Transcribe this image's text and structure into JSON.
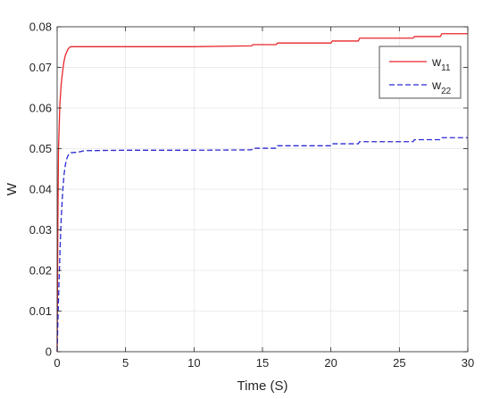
{
  "chart_data": {
    "type": "line",
    "title": "",
    "xlabel": "Time (S)",
    "ylabel": "W",
    "xlim": [
      0,
      30
    ],
    "ylim": [
      0,
      0.08
    ],
    "xticks": [
      "0",
      "5",
      "10",
      "15",
      "20",
      "25",
      "30"
    ],
    "yticks": [
      "0",
      "0.01",
      "0.02",
      "0.03",
      "0.04",
      "0.05",
      "0.06",
      "0.07",
      "0.08"
    ],
    "grid": true,
    "legend_position": "top-right",
    "series": [
      {
        "name": "w",
        "subscript": "11",
        "color": "#e8262a",
        "dash": "solid",
        "x": [
          0,
          0.05,
          0.1,
          0.2,
          0.3,
          0.4,
          0.5,
          0.6,
          0.7,
          0.8,
          0.9,
          1.0,
          1.2,
          2,
          5,
          10,
          14.2,
          14.3,
          16,
          16.1,
          20,
          20.1,
          22,
          22.1,
          26,
          26.1,
          28,
          28.1,
          30
        ],
        "y": [
          0,
          0.03,
          0.05,
          0.061,
          0.066,
          0.069,
          0.0715,
          0.073,
          0.0738,
          0.0745,
          0.0749,
          0.0751,
          0.0751,
          0.0751,
          0.0751,
          0.0751,
          0.0753,
          0.0756,
          0.0756,
          0.076,
          0.076,
          0.0765,
          0.0765,
          0.0772,
          0.0772,
          0.0776,
          0.0776,
          0.0783,
          0.0783
        ]
      },
      {
        "name": "w",
        "subscript": "22",
        "color": "#2a2ad4",
        "dash": "dashed",
        "x": [
          0,
          0.1,
          0.2,
          0.3,
          0.4,
          0.5,
          0.6,
          0.7,
          0.8,
          0.9,
          1.0,
          1.5,
          2,
          5,
          10,
          14.2,
          14.3,
          16,
          16.1,
          20,
          20.1,
          22,
          22.1,
          26,
          26.1,
          28,
          28.1,
          30
        ],
        "y": [
          0,
          0.013,
          0.024,
          0.033,
          0.039,
          0.0435,
          0.046,
          0.0475,
          0.0483,
          0.0488,
          0.049,
          0.0491,
          0.0495,
          0.0496,
          0.0496,
          0.0497,
          0.0501,
          0.0501,
          0.0507,
          0.0507,
          0.0512,
          0.0512,
          0.0517,
          0.0517,
          0.0522,
          0.0522,
          0.0527,
          0.0527
        ]
      }
    ]
  }
}
